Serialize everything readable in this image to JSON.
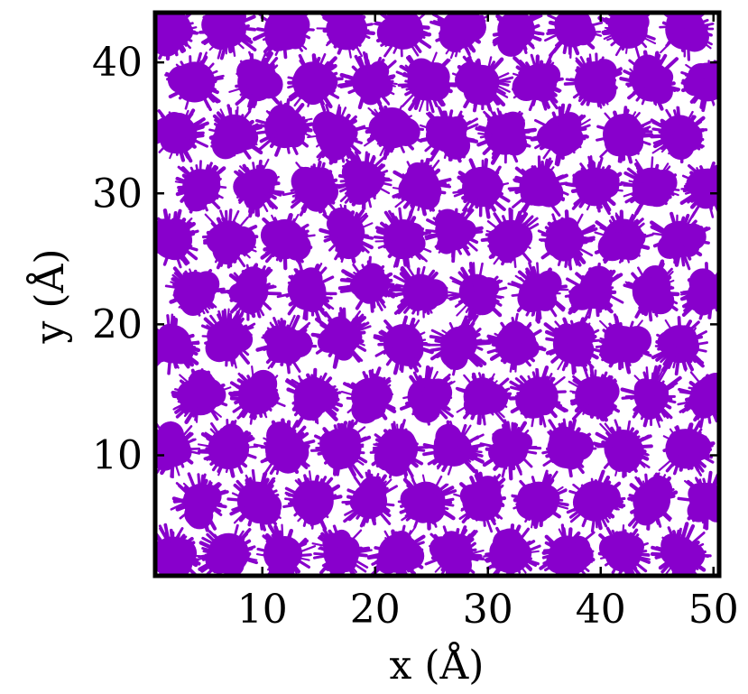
{
  "chart_data": {
    "type": "scatter",
    "title": "",
    "xlabel": "x (Å)",
    "ylabel": "y (Å)",
    "xlim": [
      0.5,
      50.5
    ],
    "ylim": [
      0.8,
      43.8
    ],
    "xticks": [
      10,
      20,
      30,
      40,
      50
    ],
    "yticks": [
      10,
      20,
      30,
      40
    ],
    "xtick_labels": [
      "10",
      "20",
      "30",
      "40",
      "50"
    ],
    "ytick_labels": [
      "10",
      "20",
      "30",
      "40"
    ],
    "grid": false,
    "legend": "none",
    "marker_color": "#8800cc",
    "description_of_points": "dense trajectory clouds of particles forming a roughly hexagonal lattice of clusters",
    "series": [
      {
        "values_note": "cluster centres (x, y) in Å",
        "points": [
          [
            2.0,
            42.5
          ],
          [
            7.0,
            42.5
          ],
          [
            12.0,
            42.5
          ],
          [
            17.5,
            42.5
          ],
          [
            22.5,
            42.5
          ],
          [
            27.5,
            42.5
          ],
          [
            32.5,
            42.5
          ],
          [
            37.5,
            42.5
          ],
          [
            42.5,
            42.5
          ],
          [
            47.5,
            42.5
          ],
          [
            4.0,
            38.5
          ],
          [
            9.5,
            38.5
          ],
          [
            14.5,
            38.5
          ],
          [
            19.5,
            38.5
          ],
          [
            24.5,
            38.5
          ],
          [
            29.5,
            38.5
          ],
          [
            34.5,
            38.5
          ],
          [
            39.5,
            38.5
          ],
          [
            44.5,
            38.5
          ],
          [
            49.5,
            38.5
          ],
          [
            2.5,
            34.5
          ],
          [
            7.5,
            34.5
          ],
          [
            12.0,
            35.0
          ],
          [
            16.5,
            34.5
          ],
          [
            21.5,
            35.0
          ],
          [
            26.5,
            34.5
          ],
          [
            31.5,
            34.5
          ],
          [
            36.5,
            34.5
          ],
          [
            42.0,
            34.5
          ],
          [
            47.0,
            34.5
          ],
          [
            4.5,
            30.5
          ],
          [
            9.5,
            30.5
          ],
          [
            14.5,
            30.5
          ],
          [
            19.0,
            31.0
          ],
          [
            24.0,
            30.5
          ],
          [
            29.5,
            30.5
          ],
          [
            34.5,
            30.5
          ],
          [
            39.5,
            30.5
          ],
          [
            44.5,
            30.5
          ],
          [
            49.5,
            30.5
          ],
          [
            2.0,
            26.5
          ],
          [
            7.0,
            26.5
          ],
          [
            12.0,
            26.5
          ],
          [
            17.5,
            27.0
          ],
          [
            22.5,
            26.5
          ],
          [
            27.0,
            27.0
          ],
          [
            32.0,
            26.5
          ],
          [
            37.0,
            26.5
          ],
          [
            42.0,
            26.5
          ],
          [
            47.0,
            26.5
          ],
          [
            4.0,
            22.5
          ],
          [
            9.0,
            22.5
          ],
          [
            14.0,
            22.5
          ],
          [
            19.5,
            23.0
          ],
          [
            24.0,
            22.5
          ],
          [
            29.0,
            22.5
          ],
          [
            34.5,
            22.5
          ],
          [
            39.5,
            22.5
          ],
          [
            44.5,
            22.5
          ],
          [
            49.5,
            22.5
          ],
          [
            2.0,
            18.5
          ],
          [
            7.0,
            19.0
          ],
          [
            12.0,
            18.5
          ],
          [
            17.0,
            19.0
          ],
          [
            22.5,
            18.5
          ],
          [
            27.5,
            18.5
          ],
          [
            32.5,
            18.5
          ],
          [
            37.5,
            18.5
          ],
          [
            42.0,
            18.5
          ],
          [
            47.0,
            18.5
          ],
          [
            4.5,
            14.5
          ],
          [
            9.5,
            14.5
          ],
          [
            14.5,
            14.5
          ],
          [
            19.5,
            14.5
          ],
          [
            24.5,
            14.5
          ],
          [
            29.5,
            14.5
          ],
          [
            34.5,
            14.5
          ],
          [
            39.5,
            14.5
          ],
          [
            44.5,
            14.5
          ],
          [
            49.5,
            14.5
          ],
          [
            2.0,
            10.5
          ],
          [
            7.0,
            10.5
          ],
          [
            12.0,
            10.5
          ],
          [
            17.0,
            10.5
          ],
          [
            22.0,
            10.5
          ],
          [
            27.0,
            10.5
          ],
          [
            32.0,
            10.5
          ],
          [
            37.0,
            10.5
          ],
          [
            42.0,
            10.5
          ],
          [
            47.5,
            10.5
          ],
          [
            4.5,
            6.5
          ],
          [
            9.5,
            6.5
          ],
          [
            14.5,
            6.5
          ],
          [
            19.5,
            6.5
          ],
          [
            24.5,
            6.5
          ],
          [
            29.5,
            6.5
          ],
          [
            34.5,
            6.5
          ],
          [
            39.5,
            6.5
          ],
          [
            44.5,
            6.5
          ],
          [
            49.5,
            6.5
          ],
          [
            2.0,
            2.5
          ],
          [
            7.0,
            2.5
          ],
          [
            12.0,
            2.5
          ],
          [
            17.0,
            2.5
          ],
          [
            22.0,
            2.5
          ],
          [
            27.0,
            2.5
          ],
          [
            32.0,
            2.5
          ],
          [
            37.0,
            2.5
          ],
          [
            42.0,
            2.5
          ],
          [
            47.0,
            2.5
          ]
        ]
      }
    ]
  }
}
